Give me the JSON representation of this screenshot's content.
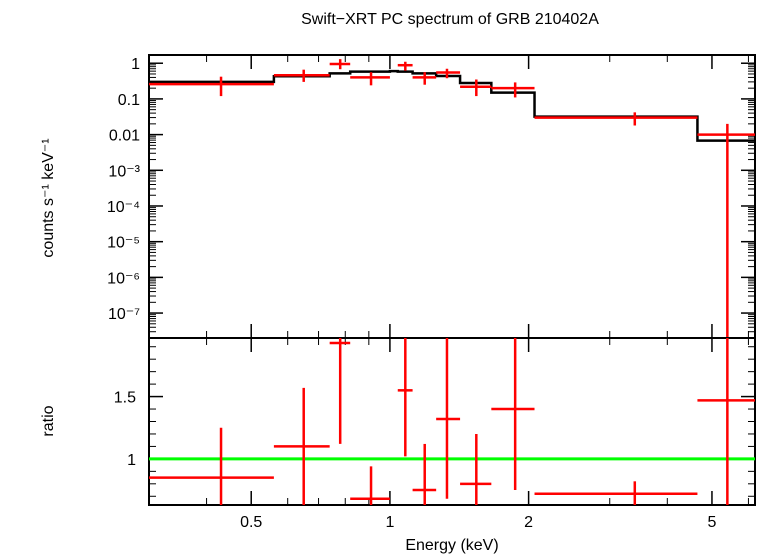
{
  "chart_data": [
    {
      "type": "line",
      "panel": "spectrum",
      "title": "Swift−XRT PC spectrum of GRB 210402A",
      "ylabel": "counts s⁻¹ keV⁻¹",
      "xscale": "log",
      "yscale": "log",
      "xlim": [
        0.3,
        6.2
      ],
      "ylim": [
        2e-08,
        1.7
      ],
      "yticks": [
        {
          "value": 1,
          "label": "1"
        },
        {
          "value": 0.1,
          "label": "0.1"
        },
        {
          "value": 0.01,
          "label": "0.01"
        },
        {
          "value": 0.001,
          "label": "10⁻³"
        },
        {
          "value": 0.0001,
          "label": "10⁻⁴"
        },
        {
          "value": 1e-05,
          "label": "10⁻⁵"
        },
        {
          "value": 1e-06,
          "label": "10⁻⁶"
        },
        {
          "value": 1e-07,
          "label": "10⁻⁷"
        }
      ],
      "series": [
        {
          "kind": "data-crosses",
          "color": "#ff0000",
          "points": [
            {
              "xlo": 0.3,
              "xhi": 0.56,
              "x": 0.43,
              "y": 0.26,
              "ylo": 0.12,
              "yhi": 0.42
            },
            {
              "xlo": 0.56,
              "xhi": 0.74,
              "x": 0.65,
              "y": 0.46,
              "ylo": 0.3,
              "yhi": 0.66
            },
            {
              "xlo": 0.74,
              "xhi": 0.82,
              "x": 0.78,
              "y": 0.95,
              "ylo": 0.68,
              "yhi": 1.3
            },
            {
              "xlo": 0.82,
              "xhi": 1.0,
              "x": 0.91,
              "y": 0.4,
              "ylo": 0.24,
              "yhi": 0.56
            },
            {
              "xlo": 1.04,
              "xhi": 1.12,
              "x": 1.08,
              "y": 0.88,
              "ylo": 0.62,
              "yhi": 1.1
            },
            {
              "xlo": 1.12,
              "xhi": 1.26,
              "x": 1.19,
              "y": 0.4,
              "ylo": 0.25,
              "yhi": 0.56
            },
            {
              "xlo": 1.26,
              "xhi": 1.42,
              "x": 1.33,
              "y": 0.55,
              "ylo": 0.38,
              "yhi": 0.7
            },
            {
              "xlo": 1.42,
              "xhi": 1.66,
              "x": 1.54,
              "y": 0.22,
              "ylo": 0.12,
              "yhi": 0.35
            },
            {
              "xlo": 1.66,
              "xhi": 2.06,
              "x": 1.87,
              "y": 0.2,
              "ylo": 0.11,
              "yhi": 0.29
            },
            {
              "xlo": 2.06,
              "xhi": 4.65,
              "x": 3.4,
              "y": 0.03,
              "ylo": 0.018,
              "yhi": 0.042
            },
            {
              "xlo": 4.65,
              "xhi": 6.2,
              "x": 5.4,
              "y": 0.01,
              "ylo": 2e-08,
              "yhi": 0.02
            }
          ]
        },
        {
          "kind": "model-step",
          "color": "#000000",
          "edges": [
            0.3,
            0.56,
            0.74,
            0.82,
            1.0,
            1.04,
            1.12,
            1.26,
            1.42,
            1.66,
            2.06,
            4.65,
            6.2
          ],
          "values": [
            0.3,
            0.43,
            0.52,
            0.58,
            0.6,
            0.58,
            0.52,
            0.44,
            0.28,
            0.15,
            0.032,
            0.0068
          ]
        }
      ]
    },
    {
      "type": "line",
      "panel": "ratio",
      "xlabel": "Energy (keV)",
      "ylabel": "ratio",
      "xscale": "log",
      "xlim": [
        0.3,
        6.2
      ],
      "ylim": [
        0.63,
        1.97
      ],
      "xticks": [
        {
          "value": 0.5,
          "label": "0.5"
        },
        {
          "value": 1,
          "label": "1"
        },
        {
          "value": 2,
          "label": "2"
        },
        {
          "value": 5,
          "label": "5"
        }
      ],
      "yticks": [
        {
          "value": 1,
          "label": "1"
        },
        {
          "value": 1.5,
          "label": "1.5"
        }
      ],
      "reference_line": {
        "y": 1,
        "color": "#00ff00"
      },
      "series": [
        {
          "kind": "data-crosses",
          "color": "#ff0000",
          "points": [
            {
              "xlo": 0.3,
              "xhi": 0.56,
              "x": 0.43,
              "y": 0.85,
              "ylo": 0.63,
              "yhi": 1.25
            },
            {
              "xlo": 0.56,
              "xhi": 0.74,
              "x": 0.65,
              "y": 1.1,
              "ylo": 0.63,
              "yhi": 1.57
            },
            {
              "xlo": 0.74,
              "xhi": 0.82,
              "x": 0.78,
              "y": 1.93,
              "ylo": 1.12,
              "yhi": 1.97
            },
            {
              "xlo": 0.82,
              "xhi": 1.0,
              "x": 0.91,
              "y": 0.68,
              "ylo": 0.63,
              "yhi": 0.94
            },
            {
              "xlo": 1.04,
              "xhi": 1.12,
              "x": 1.08,
              "y": 1.55,
              "ylo": 1.02,
              "yhi": 1.97
            },
            {
              "xlo": 1.12,
              "xhi": 1.26,
              "x": 1.19,
              "y": 0.75,
              "ylo": 0.63,
              "yhi": 1.12
            },
            {
              "xlo": 1.26,
              "xhi": 1.42,
              "x": 1.33,
              "y": 1.32,
              "ylo": 0.68,
              "yhi": 1.97
            },
            {
              "xlo": 1.42,
              "xhi": 1.66,
              "x": 1.54,
              "y": 0.8,
              "ylo": 0.63,
              "yhi": 1.2
            },
            {
              "xlo": 1.66,
              "xhi": 2.06,
              "x": 1.87,
              "y": 1.4,
              "ylo": 0.75,
              "yhi": 1.97
            },
            {
              "xlo": 2.06,
              "xhi": 4.65,
              "x": 3.4,
              "y": 0.72,
              "ylo": 0.63,
              "yhi": 0.82
            },
            {
              "xlo": 4.65,
              "xhi": 6.2,
              "x": 5.4,
              "y": 1.47,
              "ylo": 0.63,
              "yhi": 1.97
            }
          ]
        }
      ]
    }
  ]
}
